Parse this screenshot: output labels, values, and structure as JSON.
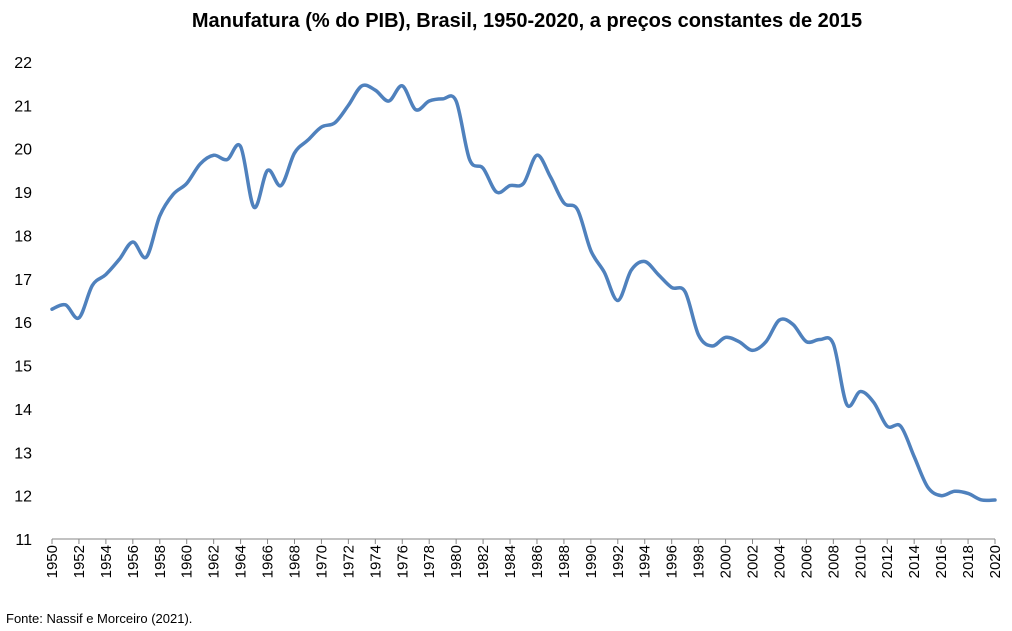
{
  "chart_data": {
    "type": "line",
    "title": "Manufatura (% do PIB), Brasil, 1950-2020,  a preços constantes de 2015",
    "xlabel": "",
    "ylabel": "",
    "source": "Fonte: Nassif e Morceiro (2021).",
    "ylim": [
      11,
      22
    ],
    "yticks": [
      "11",
      "12",
      "13",
      "14",
      "15",
      "16",
      "17",
      "18",
      "19",
      "20",
      "21",
      "22"
    ],
    "xlim": [
      1950,
      2020
    ],
    "xticks": [
      "1950",
      "1952",
      "1954",
      "1956",
      "1958",
      "1960",
      "1962",
      "1964",
      "1966",
      "1968",
      "1970",
      "1972",
      "1974",
      "1976",
      "1978",
      "1980",
      "1982",
      "1984",
      "1986",
      "1988",
      "1990",
      "1992",
      "1994",
      "1996",
      "1998",
      "2000",
      "2002",
      "2004",
      "2006",
      "2008",
      "2010",
      "2012",
      "2014",
      "2016",
      "2018",
      "2020"
    ],
    "grid": false,
    "legend": "none",
    "line_color": "#4F81BD",
    "series": [
      {
        "x": [
          1950,
          1951,
          1952,
          1953,
          1954,
          1955,
          1956,
          1957,
          1958,
          1959,
          1960,
          1961,
          1962,
          1963,
          1964,
          1965,
          1966,
          1967,
          1968,
          1969,
          1970,
          1971,
          1972,
          1973,
          1974,
          1975,
          1976,
          1977,
          1978,
          1979,
          1980,
          1981,
          1982,
          1983,
          1984,
          1985,
          1986,
          1987,
          1988,
          1989,
          1990,
          1991,
          1992,
          1993,
          1994,
          1995,
          1996,
          1997,
          1998,
          1999,
          2000,
          2001,
          2002,
          2003,
          2004,
          2005,
          2006,
          2007,
          2008,
          2009,
          2010,
          2011,
          2012,
          2013,
          2014,
          2015,
          2016,
          2017,
          2018,
          2019,
          2020
        ],
        "values": [
          16.3,
          16.4,
          16.1,
          16.85,
          17.1,
          17.45,
          17.85,
          17.5,
          18.45,
          18.95,
          19.2,
          19.65,
          19.85,
          19.75,
          20.05,
          18.65,
          19.5,
          19.15,
          19.9,
          20.2,
          20.5,
          20.6,
          21.0,
          21.45,
          21.35,
          21.1,
          21.45,
          20.9,
          21.1,
          21.15,
          21.1,
          19.75,
          19.55,
          19.0,
          19.15,
          19.2,
          19.85,
          19.35,
          18.75,
          18.6,
          17.65,
          17.15,
          16.5,
          17.2,
          17.4,
          17.1,
          16.8,
          16.7,
          15.7,
          15.45,
          15.65,
          15.55,
          15.35,
          15.55,
          16.05,
          15.95,
          15.55,
          15.6,
          15.5,
          14.1,
          14.4,
          14.15,
          13.6,
          13.6,
          12.9,
          12.2,
          12.0,
          12.1,
          12.05,
          11.9,
          11.9
        ]
      }
    ]
  }
}
